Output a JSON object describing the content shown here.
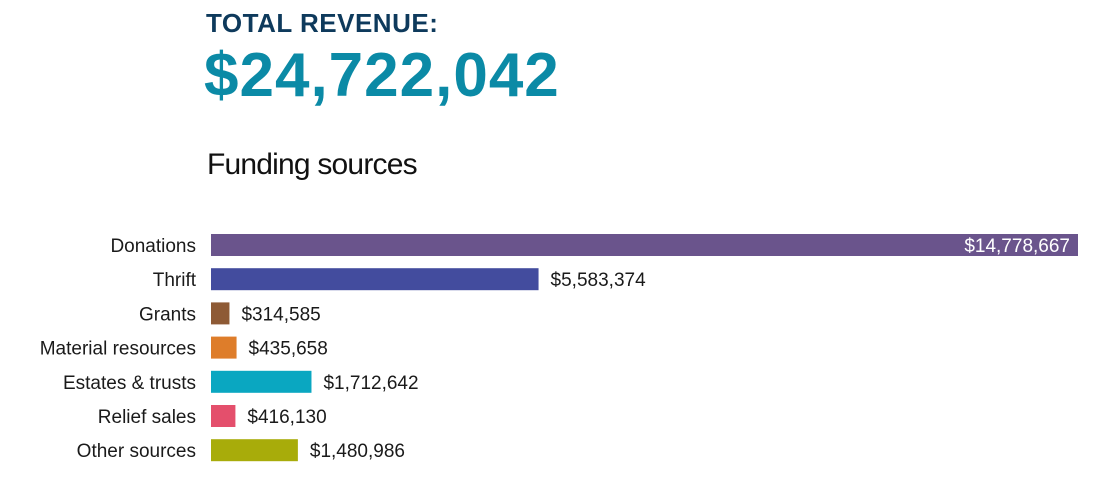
{
  "header": {
    "revenue_label": "TOTAL REVENUE:",
    "revenue_value": "$24,722,042"
  },
  "colors": {
    "label": "#0e3a5c",
    "value": "#0b8aa6"
  },
  "chart_data": {
    "type": "bar",
    "orientation": "horizontal",
    "title": "Funding sources",
    "xlabel": "",
    "ylabel": "",
    "xlim": [
      0,
      14778667
    ],
    "grid": false,
    "categories": [
      "Donations",
      "Thrift",
      "Grants",
      "Material resources",
      "Estates & trusts",
      "Relief sales",
      "Other sources"
    ],
    "values": [
      14778667,
      5583374,
      314585,
      435658,
      1712642,
      416130,
      1480986
    ],
    "value_labels": [
      "$14,778,667",
      "$5,583,374",
      "$314,585",
      "$435,658",
      "$1,712,642",
      "$416,130",
      "$1,480,986"
    ],
    "colors": [
      "#6a548c",
      "#434c9e",
      "#8e5a35",
      "#de7d2a",
      "#0aa7c1",
      "#e44f6c",
      "#a8ac0a"
    ]
  }
}
